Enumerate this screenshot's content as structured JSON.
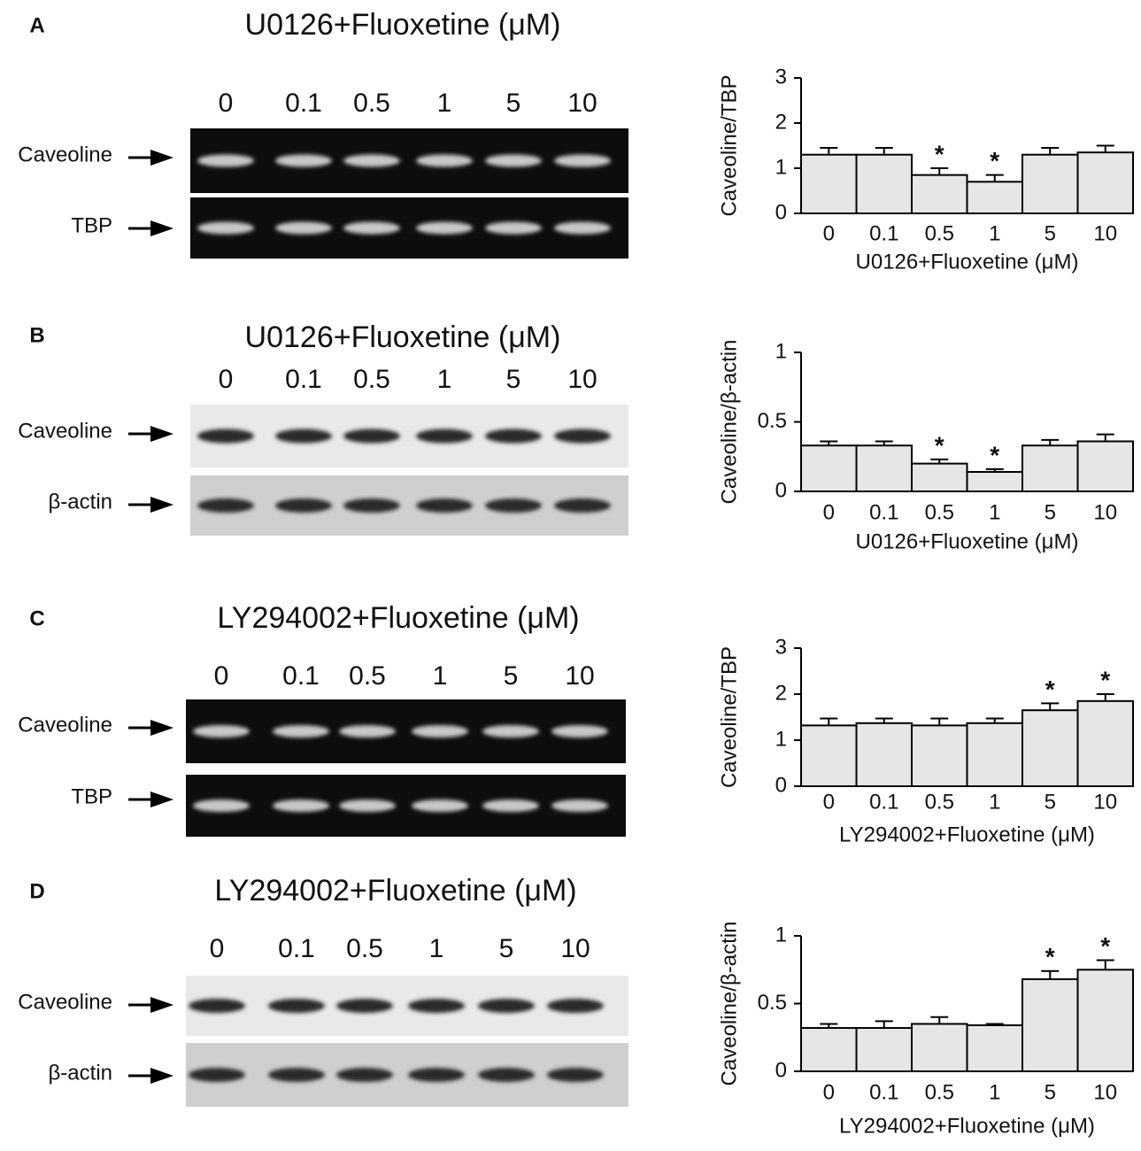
{
  "panels": [
    {
      "label": "A",
      "title": "U0126+Fluoxetine (μM)",
      "lanes": [
        "0",
        "0.1",
        "0.5",
        "1",
        "5",
        "10"
      ],
      "rows": [
        "Caveoline",
        "TBP"
      ]
    },
    {
      "label": "B",
      "title": "U0126+Fluoxetine (μM)",
      "lanes": [
        "0",
        "0.1",
        "0.5",
        "1",
        "5",
        "10"
      ],
      "rows": [
        "Caveoline",
        "β-actin"
      ]
    },
    {
      "label": "C",
      "title": "LY294002+Fluoxetine (μM)",
      "lanes": [
        "0",
        "0.1",
        "0.5",
        "1",
        "5",
        "10"
      ],
      "rows": [
        "Caveoline",
        "TBP"
      ]
    },
    {
      "label": "D",
      "title": "LY294002+Fluoxetine (μM)",
      "lanes": [
        "0",
        "0.1",
        "0.5",
        "1",
        "5",
        "10"
      ],
      "rows": [
        "Caveoline",
        "β-actin"
      ]
    }
  ],
  "chart_data": [
    {
      "type": "bar",
      "y_label": "Caveoline/TBP",
      "x_label": "U0126+Fluoxetine (μM)",
      "categories": [
        "0",
        "0.1",
        "0.5",
        "1",
        "5",
        "10"
      ],
      "values": [
        1.3,
        1.3,
        0.85,
        0.7,
        1.3,
        1.35
      ],
      "errors": [
        0.15,
        0.15,
        0.15,
        0.15,
        0.15,
        0.15
      ],
      "significance": [
        {
          "index": 2,
          "label": "*"
        },
        {
          "index": 3,
          "label": "*"
        }
      ],
      "color": "#e6e6e6",
      "ylim": [
        0,
        3
      ],
      "yticks": [
        0,
        1,
        2,
        3
      ]
    },
    {
      "type": "bar",
      "y_label": "Caveoline/β-actin",
      "x_label": "U0126+Fluoxetine (μM)",
      "categories": [
        "0",
        "0.1",
        "0.5",
        "1",
        "5",
        "10"
      ],
      "values": [
        0.33,
        0.33,
        0.2,
        0.14,
        0.33,
        0.36
      ],
      "errors": [
        0.03,
        0.03,
        0.03,
        0.02,
        0.04,
        0.05
      ],
      "significance": [
        {
          "index": 2,
          "label": "*"
        },
        {
          "index": 3,
          "label": "*"
        }
      ],
      "color": "#e6e6e6",
      "ylim": [
        0,
        1
      ],
      "yticks": [
        0,
        0.5,
        1
      ]
    },
    {
      "type": "bar",
      "y_label": "Caveoline/TBP",
      "x_label": "LY294002+Fluoxetine (μM)",
      "categories": [
        "0",
        "0.1",
        "0.5",
        "1",
        "5",
        "10"
      ],
      "values": [
        1.32,
        1.37,
        1.32,
        1.37,
        1.65,
        1.85
      ],
      "errors": [
        0.15,
        0.1,
        0.15,
        0.1,
        0.15,
        0.15
      ],
      "significance": [
        {
          "index": 4,
          "label": "*"
        },
        {
          "index": 5,
          "label": "*"
        }
      ],
      "color": "#e6e6e6",
      "ylim": [
        0,
        3
      ],
      "yticks": [
        0,
        1,
        2,
        3
      ]
    },
    {
      "type": "bar",
      "y_label": "Caveoline/β-actin",
      "x_label": "LY294002+Fluoxetine (μM)",
      "categories": [
        "0",
        "0.1",
        "0.5",
        "1",
        "5",
        "10"
      ],
      "values": [
        0.32,
        0.32,
        0.35,
        0.34,
        0.68,
        0.75
      ],
      "errors": [
        0.03,
        0.05,
        0.05,
        0.01,
        0.06,
        0.07
      ],
      "significance": [
        {
          "index": 4,
          "label": "*"
        },
        {
          "index": 5,
          "label": "*"
        }
      ],
      "color": "#e6e6e6",
      "ylim": [
        0,
        1
      ],
      "yticks": [
        0,
        0.5,
        1
      ]
    }
  ]
}
